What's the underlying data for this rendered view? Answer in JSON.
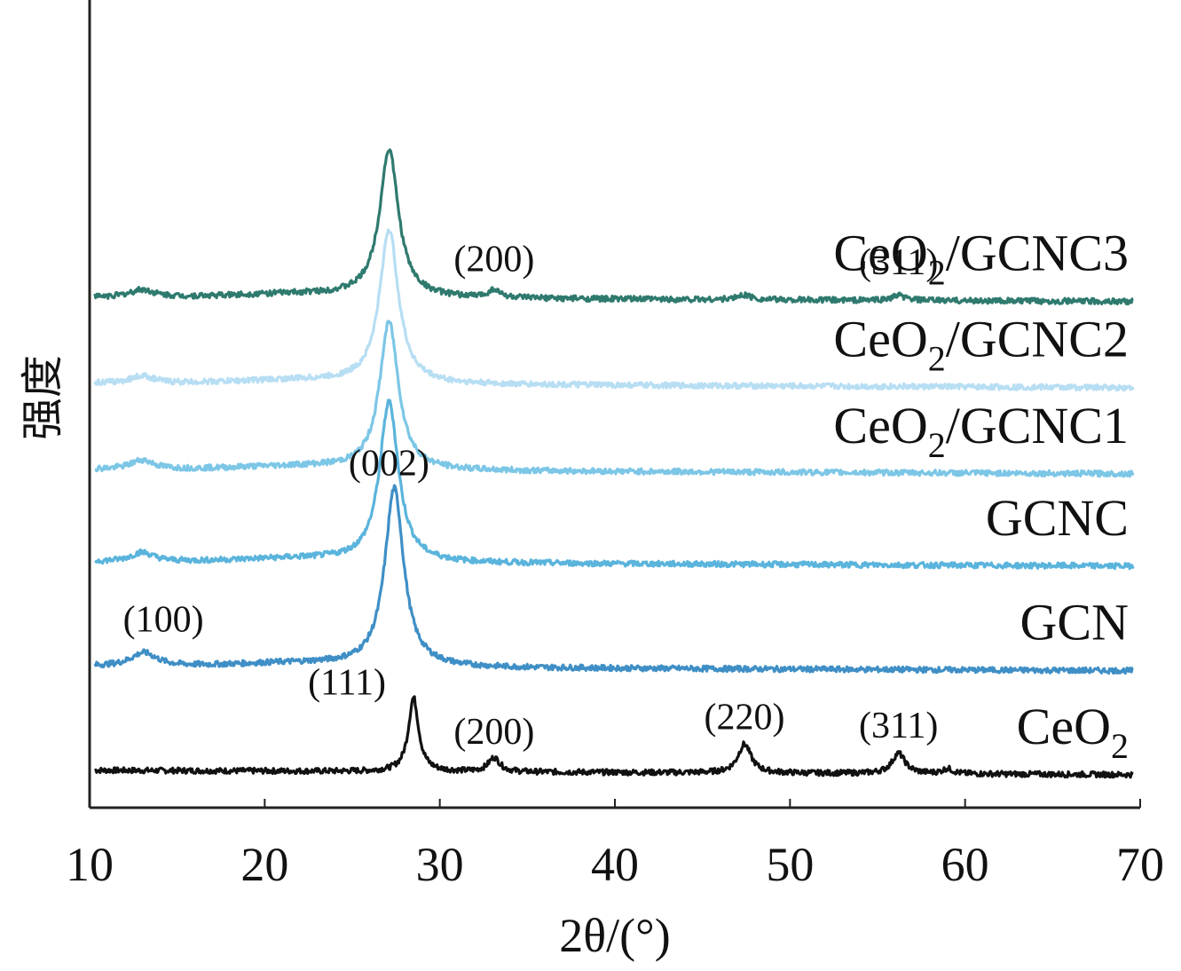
{
  "chart_data": {
    "type": "line",
    "title": "",
    "xlabel": "2θ/(°)",
    "ylabel": "强度",
    "xlim": [
      10,
      70
    ],
    "xticks": [
      "10",
      "20",
      "30",
      "40",
      "50",
      "60",
      "70"
    ],
    "colors": {
      "CeO2": "#111111",
      "GCN": "#3f8fc6",
      "GCNC": "#5ab4dc",
      "CeO2/GCNC1": "#7cc6e6",
      "CeO2/GCNC2": "#b7def3",
      "CeO2/GCNC3": "#2f7a6e",
      "axis": "#222222"
    },
    "series": [
      {
        "name": "CeO2",
        "label_main": "CeO",
        "label_sub": "2",
        "label_tail": "",
        "offset": 0,
        "baseline": 0.6,
        "peaks": [
          {
            "pos": 28.5,
            "height": 12,
            "width": 0.35,
            "hkl": "(111)"
          },
          {
            "pos": 33.1,
            "height": 2.3,
            "width": 0.4,
            "hkl": "(200)"
          },
          {
            "pos": 47.4,
            "height": 4.7,
            "width": 0.45,
            "hkl": "(220)"
          },
          {
            "pos": 56.2,
            "height": 3.3,
            "width": 0.45,
            "hkl": "(311)"
          },
          {
            "pos": 59.0,
            "height": 0.8,
            "width": 0.35,
            "hkl": ""
          }
        ]
      },
      {
        "name": "GCN",
        "label_main": "GCN",
        "label_sub": "",
        "label_tail": "",
        "offset": 16,
        "baseline": 1.5,
        "peaks": [
          {
            "pos": 13.1,
            "height": 2.2,
            "width": 0.9,
            "hkl": "(100)"
          },
          {
            "pos": 27.4,
            "height": 29,
            "width": 0.65,
            "hkl": "(002)"
          }
        ]
      },
      {
        "name": "GCNC",
        "label_main": "GCNC",
        "label_sub": "",
        "label_tail": "",
        "offset": 33,
        "baseline": 1.5,
        "peaks": [
          {
            "pos": 13.0,
            "height": 1.5,
            "width": 0.8,
            "hkl": ""
          },
          {
            "pos": 27.1,
            "height": 26,
            "width": 0.65,
            "hkl": ""
          }
        ]
      },
      {
        "name": "CeO2/GCNC1",
        "label_main": "CeO",
        "label_sub": "2",
        "label_tail": "/GCNC1",
        "offset": 48,
        "baseline": 1.5,
        "peaks": [
          {
            "pos": 13.0,
            "height": 1.5,
            "width": 0.8,
            "hkl": ""
          },
          {
            "pos": 27.1,
            "height": 24,
            "width": 0.65,
            "hkl": ""
          }
        ]
      },
      {
        "name": "CeO2/GCNC2",
        "label_main": "CeO",
        "label_sub": "2",
        "label_tail": "/GCNC2",
        "offset": 62,
        "baseline": 1.5,
        "peaks": [
          {
            "pos": 13.0,
            "height": 1.2,
            "width": 0.8,
            "hkl": ""
          },
          {
            "pos": 27.1,
            "height": 25,
            "width": 0.65,
            "hkl": ""
          }
        ]
      },
      {
        "name": "CeO2/GCNC3",
        "label_main": "CeO",
        "label_sub": "2",
        "label_tail": "/GCNC3",
        "offset": 76,
        "baseline": 1.5,
        "peaks": [
          {
            "pos": 13.0,
            "height": 1.2,
            "width": 0.8,
            "hkl": ""
          },
          {
            "pos": 27.1,
            "height": 24,
            "width": 0.65,
            "hkl": ""
          },
          {
            "pos": 33.1,
            "height": 1.3,
            "width": 0.4,
            "hkl": "(200)"
          },
          {
            "pos": 47.4,
            "height": 0.8,
            "width": 0.45,
            "hkl": ""
          },
          {
            "pos": 56.2,
            "height": 0.8,
            "width": 0.45,
            "hkl": "(311)"
          }
        ]
      }
    ]
  }
}
